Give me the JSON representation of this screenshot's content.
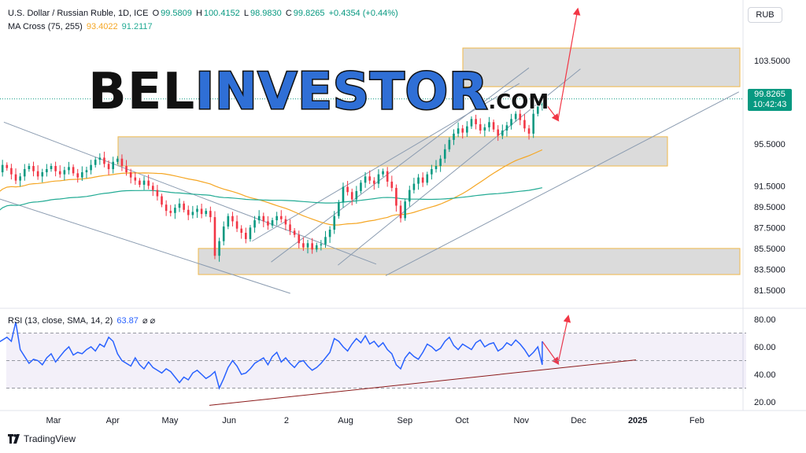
{
  "header": {
    "symbol": "U.S. Dollar / Russian Ruble, 1D, ICE",
    "open_label": "O",
    "open": "99.5809",
    "high_label": "H",
    "high": "100.4152",
    "low_label": "L",
    "low": "98.9830",
    "close_label": "C",
    "close": "99.8265",
    "change": "+0.4354 (+0.44%)",
    "ma_label": "MA Cross (75, 255)",
    "ma_fast": "93.4022",
    "ma_slow": "91.2117"
  },
  "currency_button": "RUB",
  "price_tag": {
    "price": "99.8265",
    "countdown": "10:42:43"
  },
  "rsi_header": {
    "label": "RSI (13, close, SMA, 14, 2)",
    "value": "63.87",
    "icons": "⌀ ⌀"
  },
  "watermark": {
    "part1": "BEL",
    "part2": "INVESTOR",
    "part3": ".COM"
  },
  "footer": {
    "brand": "TradingView"
  },
  "colors": {
    "up": "#089981",
    "down": "#f23645",
    "ma_fast": "#f5a623",
    "ma_slow": "#22ab94",
    "rsi": "#2962ff",
    "arrow": "#f23645",
    "trend": "#8a9bb0"
  },
  "chart_data": [
    {
      "type": "candlestick",
      "title": "U.S. Dollar / Russian Ruble, 1D, ICE",
      "x_ticks": [
        "Mar",
        "Apr",
        "May",
        "Jun",
        "2",
        "Aug",
        "Sep",
        "Oct",
        "Nov",
        "Dec",
        "2025",
        "Feb"
      ],
      "y_ticks": [
        103.5,
        95.5,
        91.5,
        89.5,
        87.5,
        85.5,
        83.5,
        81.5
      ],
      "y_tick_labels": [
        "103.5000",
        "95.5000",
        "91.5000",
        "89.5000",
        "87.5000",
        "85.5000",
        "83.5000",
        "81.5000"
      ],
      "ylim": [
        80.5,
        107.5
      ],
      "last_price": 99.8265,
      "close_series": [
        91.3,
        91.6,
        92.1,
        92.8,
        93.5,
        93.2,
        92.6,
        92.0,
        92.4,
        93.1,
        93.4,
        92.9,
        92.4,
        92.8,
        93.1,
        93.4,
        92.9,
        92.6,
        93.0,
        93.3,
        92.7,
        92.3,
        92.8,
        93.0,
        93.5,
        94.0,
        94.2,
        93.6,
        93.1,
        93.8,
        94.1,
        93.4,
        92.8,
        92.3,
        92.0,
        91.6,
        92.0,
        91.5,
        91.1,
        90.5,
        89.7,
        89.1,
        88.9,
        89.4,
        89.8,
        89.2,
        88.7,
        89.0,
        89.3,
        88.8,
        89.1,
        88.5,
        84.8,
        86.2,
        87.6,
        88.6,
        88.1,
        87.4,
        87.0,
        86.4,
        87.5,
        88.2,
        88.6,
        88.1,
        87.7,
        88.2,
        88.6,
        88.3,
        87.8,
        87.2,
        86.8,
        86.0,
        85.6,
        86.0,
        85.4,
        85.8,
        85.9,
        86.6,
        87.3,
        88.6,
        89.9,
        91.4,
        90.9,
        90.2,
        91.0,
        91.8,
        92.4,
        92.0,
        91.7,
        92.6,
        92.9,
        91.9,
        91.3,
        89.6,
        88.4,
        90.0,
        91.1,
        91.7,
        92.3,
        91.8,
        92.6,
        93.1,
        93.4,
        94.1,
        95.0,
        95.9,
        96.5,
        97.0,
        96.6,
        97.2,
        97.9,
        97.4,
        96.8,
        97.1,
        97.6,
        96.9,
        96.3,
        96.8,
        97.3,
        97.9,
        98.4,
        97.8,
        97.0,
        96.5,
        98.4,
        99.2,
        99.8
      ],
      "x_range_days": [
        0,
        360
      ],
      "x_days_of_ticks": [
        36,
        67,
        97,
        128,
        158,
        189,
        220,
        250,
        281,
        311,
        342,
        373
      ],
      "ma_fast_label": "MA 75",
      "ma_fast_last": 93.4022,
      "ma_slow_label": "MA 255",
      "ma_slow_last": 91.2117,
      "zones": [
        {
          "from": 101.0,
          "to": 104.7
        },
        {
          "from": 93.4,
          "to": 96.2
        },
        {
          "from": 83.0,
          "to": 85.5
        }
      ]
    },
    {
      "type": "line",
      "title": "RSI (13, close, SMA, 14, 2)",
      "y_ticks": [
        80,
        60,
        40,
        20
      ],
      "y_tick_labels": [
        "80.00",
        "60.00",
        "40.00",
        "20.00"
      ],
      "ylim": [
        10,
        90
      ],
      "bands": [
        70,
        50,
        30
      ],
      "last_value": 63.87,
      "series": [
        64,
        62,
        66,
        63,
        65,
        67,
        64,
        78,
        58,
        53,
        48,
        51,
        50,
        47,
        52,
        55,
        49,
        53,
        57,
        60,
        54,
        56,
        55,
        58,
        60,
        57,
        62,
        60,
        67,
        64,
        55,
        50,
        48,
        46,
        52,
        47,
        44,
        49,
        45,
        43,
        41,
        44,
        42,
        38,
        34,
        38,
        36,
        41,
        43,
        40,
        37,
        39,
        42,
        30,
        37,
        45,
        50,
        46,
        40,
        41,
        44,
        48,
        50,
        52,
        47,
        53,
        56,
        49,
        52,
        48,
        45,
        49,
        50,
        46,
        43,
        45,
        48,
        52,
        56,
        66,
        64,
        60,
        57,
        62,
        66,
        63,
        68,
        62,
        64,
        60,
        63,
        58,
        55,
        47,
        44,
        52,
        56,
        53,
        51,
        56,
        62,
        60,
        57,
        59,
        64,
        67,
        61,
        58,
        62,
        60,
        58,
        63,
        65,
        60,
        62,
        63,
        57,
        59,
        63,
        61,
        65,
        62,
        58,
        53,
        56,
        60,
        47,
        56,
        64
      ]
    }
  ]
}
